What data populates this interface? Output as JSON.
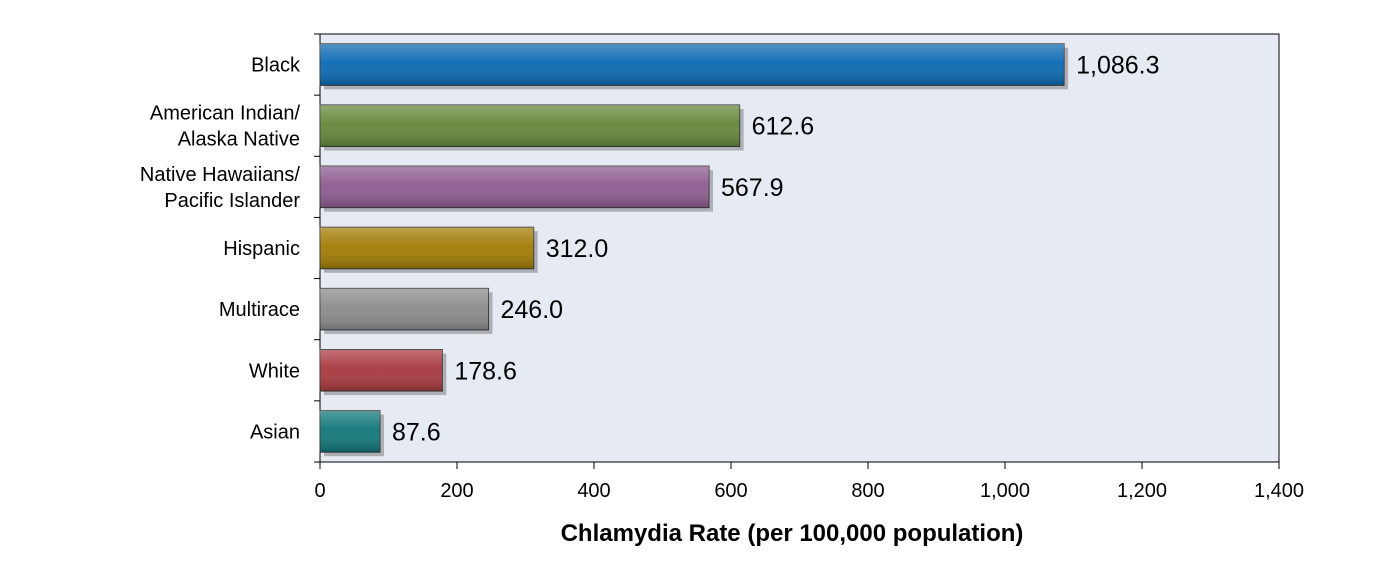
{
  "chart_data": {
    "type": "bar",
    "orientation": "horizontal",
    "title": "",
    "xlabel": "Chlamydia Rate (per 100,000 population)",
    "ylabel": "",
    "xlim": [
      0,
      1400
    ],
    "xticks": [
      0,
      200,
      400,
      600,
      800,
      1000,
      1200,
      1400
    ],
    "xtick_labels": [
      "0",
      "200",
      "400",
      "600",
      "800",
      "1,000",
      "1,200",
      "1,400"
    ],
    "grid": false,
    "legend": "none",
    "plot_background": "#e6eaf2",
    "categories": [
      {
        "lines": [
          "Black"
        ]
      },
      {
        "lines": [
          "American Indian/",
          "Alaska Native"
        ]
      },
      {
        "lines": [
          "Native Hawaiians/",
          "Pacific Islander"
        ]
      },
      {
        "lines": [
          "Hispanic"
        ]
      },
      {
        "lines": [
          "Multirace"
        ]
      },
      {
        "lines": [
          "White"
        ]
      },
      {
        "lines": [
          "Asian"
        ]
      }
    ],
    "values": [
      1086.3,
      612.6,
      567.9,
      312.0,
      246.0,
      178.6,
      87.6
    ],
    "value_labels": [
      "1,086.3",
      "612.6",
      "567.9",
      "312.0",
      "246.0",
      "178.6",
      "87.6"
    ],
    "colors": [
      "#0b6ab3",
      "#66883a",
      "#8e5c91",
      "#a27d06",
      "#8c8c8c",
      "#a93a40",
      "#12787a"
    ]
  }
}
